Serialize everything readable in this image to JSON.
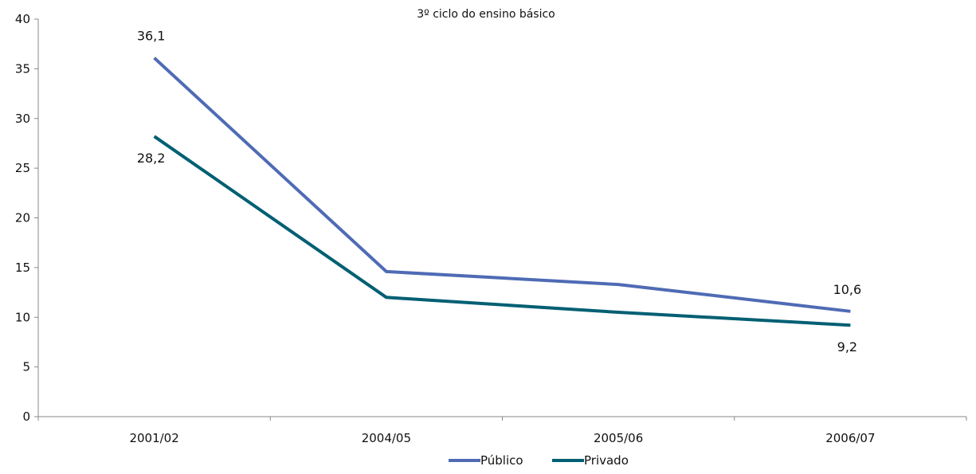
{
  "chart_data": {
    "type": "line",
    "title": "3º ciclo do ensino básico",
    "xlabel": "",
    "ylabel": "",
    "categories": [
      "2001/02",
      "2004/05",
      "2005/06",
      "2006/07"
    ],
    "ylim": [
      0,
      40
    ],
    "yticks": [
      0,
      5,
      10,
      15,
      20,
      25,
      30,
      35,
      40
    ],
    "grid": false,
    "legend_position": "bottom",
    "series": [
      {
        "name": "Público",
        "color": "#4F6BB5",
        "values": [
          36.1,
          14.6,
          13.3,
          10.6
        ],
        "labels": [
          "36,1",
          "",
          "",
          "10,6"
        ],
        "label_side": "above"
      },
      {
        "name": "Privado",
        "color": "#005F73",
        "values": [
          28.2,
          12.0,
          10.5,
          9.2
        ],
        "labels": [
          "28,2",
          "",
          "",
          "9,2"
        ],
        "label_side": "below"
      }
    ]
  }
}
